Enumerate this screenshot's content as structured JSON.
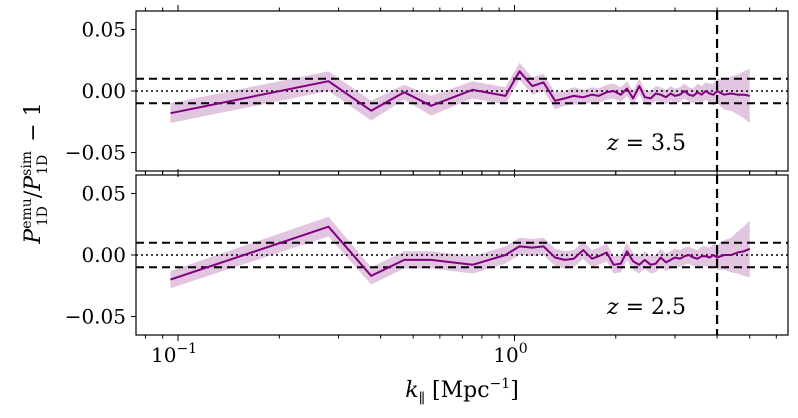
{
  "chart_data": [
    {
      "type": "line",
      "panel": "top",
      "annotation": "z = 3.5",
      "annotation_parts": {
        "var": "z",
        "eq": " = ",
        "val": "3.5"
      },
      "xscale": "log",
      "xlim": [
        0.075,
        6.5
      ],
      "ylim": [
        -0.065,
        0.065
      ],
      "yticks": [
        0.05,
        0.0,
        -0.05
      ],
      "ytick_labels": [
        "0.05",
        "0.00",
        "−0.05"
      ],
      "hlines_dashed": [
        0.01,
        -0.01
      ],
      "hline_dotted": 0.0,
      "vline_dashed_x": 4.0,
      "series": [
        {
          "name": "P1D emu / P1D sim − 1",
          "color": "#800080",
          "band_color": "#c896c8",
          "x": [
            0.095,
            0.28,
            0.375,
            0.47,
            0.565,
            0.75,
            0.94,
            1.035,
            1.13,
            1.22,
            1.32,
            1.41,
            1.5,
            1.6,
            1.7,
            1.78,
            1.88,
            1.97,
            2.07,
            2.16,
            2.25,
            2.35,
            2.44,
            2.54,
            2.63,
            2.72,
            2.82,
            2.91,
            3.0,
            3.1,
            3.2,
            3.3,
            3.4,
            3.5,
            3.6,
            3.7,
            3.8,
            3.9,
            4.0,
            4.2,
            4.4,
            4.6,
            4.8,
            5.0
          ],
          "y": [
            -0.018,
            0.008,
            -0.016,
            -0.001,
            -0.012,
            0.001,
            -0.004,
            0.016,
            0.004,
            0.007,
            -0.008,
            -0.006,
            -0.004,
            -0.005,
            -0.003,
            -0.004,
            -0.001,
            0.0,
            -0.003,
            0.002,
            -0.006,
            0.004,
            -0.005,
            -0.006,
            -0.002,
            -0.003,
            -0.005,
            -0.002,
            -0.004,
            -0.003,
            0.0,
            -0.003,
            -0.004,
            -0.001,
            -0.003,
            0.0,
            -0.002,
            -0.003,
            0.0,
            -0.003,
            -0.002,
            -0.003,
            -0.003,
            -0.004
          ],
          "y_lower": [
            -0.026,
            0.0,
            -0.024,
            -0.007,
            -0.02,
            -0.006,
            -0.011,
            0.009,
            -0.003,
            0.0,
            -0.015,
            -0.012,
            -0.011,
            -0.011,
            -0.009,
            -0.01,
            -0.007,
            -0.006,
            -0.009,
            -0.004,
            -0.012,
            -0.002,
            -0.011,
            -0.012,
            -0.008,
            -0.009,
            -0.011,
            -0.008,
            -0.01,
            -0.009,
            -0.006,
            -0.009,
            -0.01,
            -0.008,
            -0.01,
            -0.007,
            -0.01,
            -0.012,
            -0.01,
            -0.015,
            -0.016,
            -0.019,
            -0.022,
            -0.026
          ],
          "y_upper": [
            -0.01,
            0.016,
            -0.008,
            0.005,
            -0.004,
            0.008,
            0.003,
            0.023,
            0.011,
            0.014,
            -0.001,
            0.0,
            0.003,
            0.001,
            0.003,
            0.002,
            0.005,
            0.006,
            0.003,
            0.008,
            0.0,
            0.01,
            0.001,
            0.0,
            0.004,
            0.003,
            0.001,
            0.004,
            0.002,
            0.003,
            0.006,
            0.003,
            0.002,
            0.006,
            0.004,
            0.007,
            0.006,
            0.006,
            0.01,
            0.009,
            0.012,
            0.013,
            0.016,
            0.018
          ]
        }
      ]
    },
    {
      "type": "line",
      "panel": "bottom",
      "annotation": "z = 2.5",
      "annotation_parts": {
        "var": "z",
        "eq": " = ",
        "val": "2.5"
      },
      "xscale": "log",
      "xlim": [
        0.075,
        6.5
      ],
      "ylim": [
        -0.065,
        0.065
      ],
      "yticks": [
        0.05,
        0.0,
        -0.05
      ],
      "ytick_labels": [
        "0.05",
        "0.00",
        "−0.05"
      ],
      "xticks": [
        0.1,
        1.0
      ],
      "xtick_labels": [
        {
          "base": "10",
          "exp": "−1"
        },
        {
          "base": "10",
          "exp": "0"
        }
      ],
      "hlines_dashed": [
        0.01,
        -0.01
      ],
      "hline_dotted": 0.0,
      "vline_dashed_x": 4.0,
      "series": [
        {
          "name": "P1D emu / P1D sim − 1",
          "color": "#800080",
          "band_color": "#c896c8",
          "x": [
            0.095,
            0.28,
            0.375,
            0.47,
            0.565,
            0.75,
            0.94,
            1.035,
            1.13,
            1.22,
            1.32,
            1.41,
            1.5,
            1.6,
            1.7,
            1.78,
            1.88,
            1.97,
            2.07,
            2.16,
            2.25,
            2.35,
            2.44,
            2.54,
            2.63,
            2.72,
            2.82,
            2.91,
            3.0,
            3.1,
            3.2,
            3.3,
            3.4,
            3.5,
            3.6,
            3.7,
            3.8,
            3.9,
            4.0,
            4.2,
            4.4,
            4.6,
            4.8,
            5.0
          ],
          "y": [
            -0.02,
            0.023,
            -0.017,
            -0.004,
            -0.004,
            -0.008,
            0.0,
            0.007,
            0.006,
            0.007,
            -0.002,
            -0.004,
            -0.003,
            0.004,
            -0.003,
            -0.001,
            0.002,
            -0.008,
            -0.007,
            0.003,
            -0.005,
            -0.008,
            -0.004,
            -0.008,
            -0.007,
            -0.002,
            -0.006,
            -0.004,
            -0.002,
            -0.003,
            -0.001,
            0.0,
            -0.002,
            -0.003,
            -0.001,
            -0.001,
            -0.002,
            0.0,
            -0.002,
            0.0,
            0.0,
            0.002,
            0.003,
            0.005
          ],
          "y_lower": [
            -0.027,
            0.015,
            -0.024,
            -0.011,
            -0.011,
            -0.015,
            -0.007,
            0.0,
            -0.001,
            0.0,
            -0.009,
            -0.011,
            -0.01,
            -0.003,
            -0.01,
            -0.008,
            -0.005,
            -0.015,
            -0.014,
            -0.004,
            -0.012,
            -0.015,
            -0.011,
            -0.015,
            -0.014,
            -0.009,
            -0.013,
            -0.011,
            -0.009,
            -0.01,
            -0.008,
            -0.007,
            -0.009,
            -0.01,
            -0.009,
            -0.009,
            -0.01,
            -0.009,
            -0.012,
            -0.012,
            -0.014,
            -0.015,
            -0.017,
            -0.018
          ],
          "y_upper": [
            -0.013,
            0.031,
            -0.01,
            0.003,
            0.003,
            -0.001,
            0.007,
            0.014,
            0.013,
            0.014,
            0.005,
            0.003,
            0.004,
            0.011,
            0.004,
            0.006,
            0.009,
            -0.001,
            0.0,
            0.01,
            0.002,
            -0.001,
            0.003,
            -0.001,
            0.0,
            0.005,
            0.001,
            0.003,
            0.005,
            0.004,
            0.006,
            0.007,
            0.005,
            0.004,
            0.007,
            0.007,
            0.006,
            0.009,
            0.008,
            0.012,
            0.014,
            0.019,
            0.023,
            0.028
          ]
        }
      ]
    }
  ],
  "axes": {
    "ylabel": {
      "base": "P",
      "sub1": "1D",
      "sup1": "emu",
      "slash": "/",
      "sub2": "1D",
      "sup2": "sim",
      "tail": " − 1"
    },
    "xlabel": {
      "var": "k",
      "sub": "∥",
      "unit_open": " [Mpc",
      "unit_exp": "−1",
      "unit_close": "]"
    }
  }
}
